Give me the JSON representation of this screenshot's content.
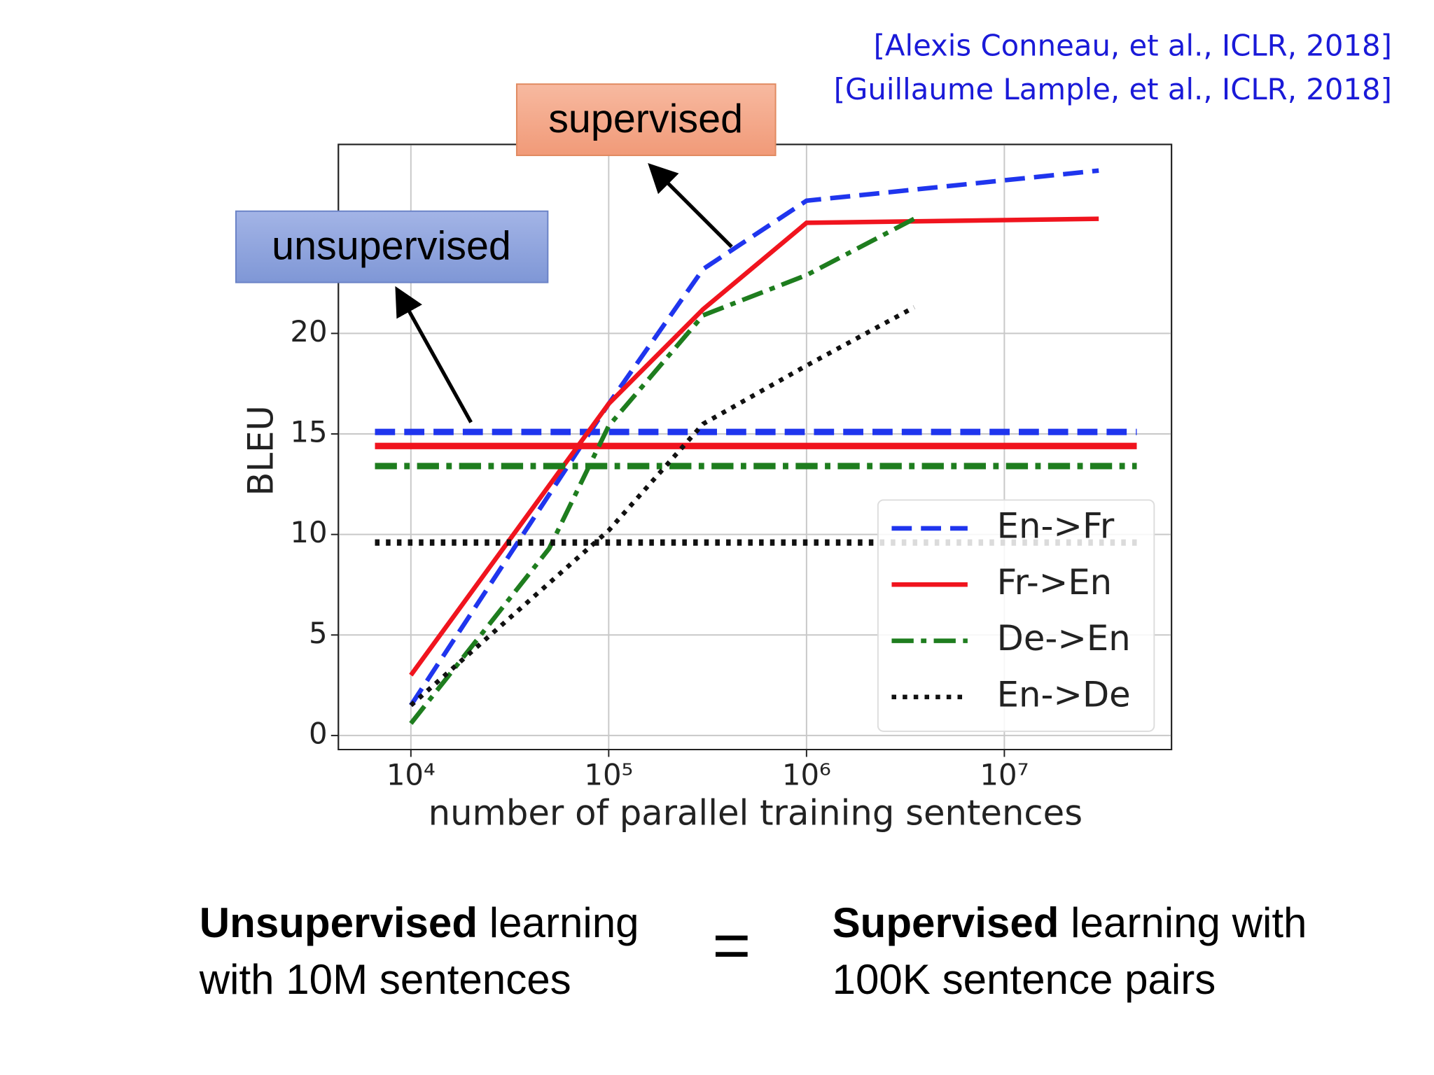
{
  "chart_data": {
    "type": "line",
    "citations": [
      "[Alexis Conneau, et al., ICLR, 2018]",
      "[Guillaume Lample, et al., ICLR, 2018]"
    ],
    "x_label": "number of parallel training sentences",
    "y_label": "BLEU",
    "log_x": true,
    "grid": true,
    "legend": "lower right",
    "xlim": [
      4300,
      70000000
    ],
    "ylim": [
      -0.7,
      29.4
    ],
    "xticks": [
      {
        "value": 10000,
        "label": "10⁴"
      },
      {
        "value": 100000,
        "label": "10⁵"
      },
      {
        "value": 1000000,
        "label": "10⁶"
      },
      {
        "value": 10000000,
        "label": "10⁷"
      }
    ],
    "yticks": [
      0,
      5,
      10,
      15,
      20
    ],
    "series": [
      {
        "name": "En->Fr",
        "color": "#1f35ee",
        "style": "dashed",
        "x": [
          10000,
          100000,
          300000,
          1000000,
          30000000
        ],
        "values": [
          1.5,
          16.5,
          23.2,
          26.6,
          28.1
        ],
        "baseline": 15.1
      },
      {
        "name": "Fr->En",
        "color": "#f0141e",
        "style": "solid",
        "x": [
          10000,
          100000,
          300000,
          1000000,
          30000000
        ],
        "values": [
          3.0,
          16.5,
          21.2,
          25.5,
          25.7
        ],
        "baseline": 14.4
      },
      {
        "name": "De->En",
        "color": "#1e7d1e",
        "style": "dashdot",
        "x": [
          10000,
          50000,
          100000,
          300000,
          1000000,
          3500000
        ],
        "values": [
          0.6,
          9.3,
          15.4,
          20.9,
          22.9,
          25.7
        ],
        "baseline": 13.4
      },
      {
        "name": "En->De",
        "color": "#111111",
        "style": "dotted",
        "x": [
          10000,
          100000,
          300000,
          1000000,
          3500000
        ],
        "values": [
          1.5,
          10.2,
          15.5,
          18.4,
          21.3
        ],
        "baseline": 9.6
      }
    ],
    "annotations": {
      "supervised": "supervised",
      "unsupervised": "unsupervised"
    },
    "conclusion": {
      "left_bold": "Unsupervised",
      "left_rest": "learning",
      "left_line2": "with 10M sentences",
      "equals": "=",
      "right_bold": "Supervised",
      "right_rest": "learning with",
      "right_line2": "100K sentence pairs"
    }
  }
}
